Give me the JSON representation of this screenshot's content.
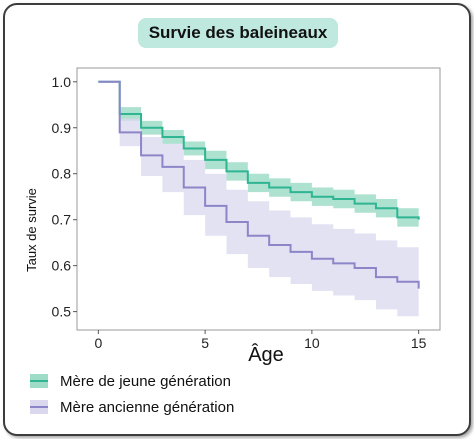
{
  "chart_data": {
    "type": "line",
    "subtype": "step-with-confidence-band",
    "title": "Survie des baleineaux",
    "xlabel": "Âge",
    "ylabel": "Taux de survie",
    "xlim": [
      -1.0,
      16.0
    ],
    "ylim": [
      0.46,
      1.03
    ],
    "xticks": [
      0,
      5,
      10,
      15
    ],
    "yticks": [
      1.0,
      0.9,
      0.8,
      0.7,
      0.6,
      0.5
    ],
    "ytick_labels": [
      "1.0",
      "0.9",
      "0.8",
      "0.7",
      "0.6",
      "0.5"
    ],
    "grid": false,
    "legend_position": "bottom-left",
    "series": [
      {
        "name": "Mère de jeune génération",
        "color": "#2fb592",
        "band_color": "#9fdcc8",
        "x": [
          0,
          1,
          2,
          3,
          4,
          5,
          6,
          7,
          8,
          9,
          10,
          11,
          12,
          13,
          14,
          15
        ],
        "y": [
          1.0,
          0.93,
          0.9,
          0.88,
          0.855,
          0.83,
          0.805,
          0.78,
          0.77,
          0.76,
          0.75,
          0.745,
          0.735,
          0.725,
          0.705,
          0.7
        ],
        "lower": [
          1.0,
          0.915,
          0.885,
          0.865,
          0.84,
          0.81,
          0.785,
          0.76,
          0.75,
          0.74,
          0.73,
          0.725,
          0.715,
          0.705,
          0.685,
          0.68
        ],
        "upper": [
          1.0,
          0.945,
          0.915,
          0.895,
          0.87,
          0.85,
          0.825,
          0.8,
          0.79,
          0.78,
          0.77,
          0.765,
          0.755,
          0.745,
          0.725,
          0.72
        ]
      },
      {
        "name": "Mère ancienne génération",
        "color": "#8c86c9",
        "band_color": "#d9d8ee",
        "x": [
          0,
          1,
          2,
          3,
          4,
          5,
          6,
          7,
          8,
          9,
          10,
          11,
          12,
          13,
          14,
          15
        ],
        "y": [
          1.0,
          0.89,
          0.84,
          0.815,
          0.77,
          0.73,
          0.695,
          0.665,
          0.645,
          0.63,
          0.615,
          0.605,
          0.595,
          0.575,
          0.565,
          0.55
        ],
        "lower": [
          1.0,
          0.86,
          0.795,
          0.76,
          0.71,
          0.665,
          0.625,
          0.595,
          0.575,
          0.56,
          0.545,
          0.535,
          0.525,
          0.505,
          0.49,
          0.49
        ],
        "upper": [
          1.0,
          0.92,
          0.88,
          0.865,
          0.83,
          0.8,
          0.765,
          0.74,
          0.72,
          0.705,
          0.69,
          0.68,
          0.67,
          0.655,
          0.64,
          0.63
        ]
      }
    ]
  }
}
